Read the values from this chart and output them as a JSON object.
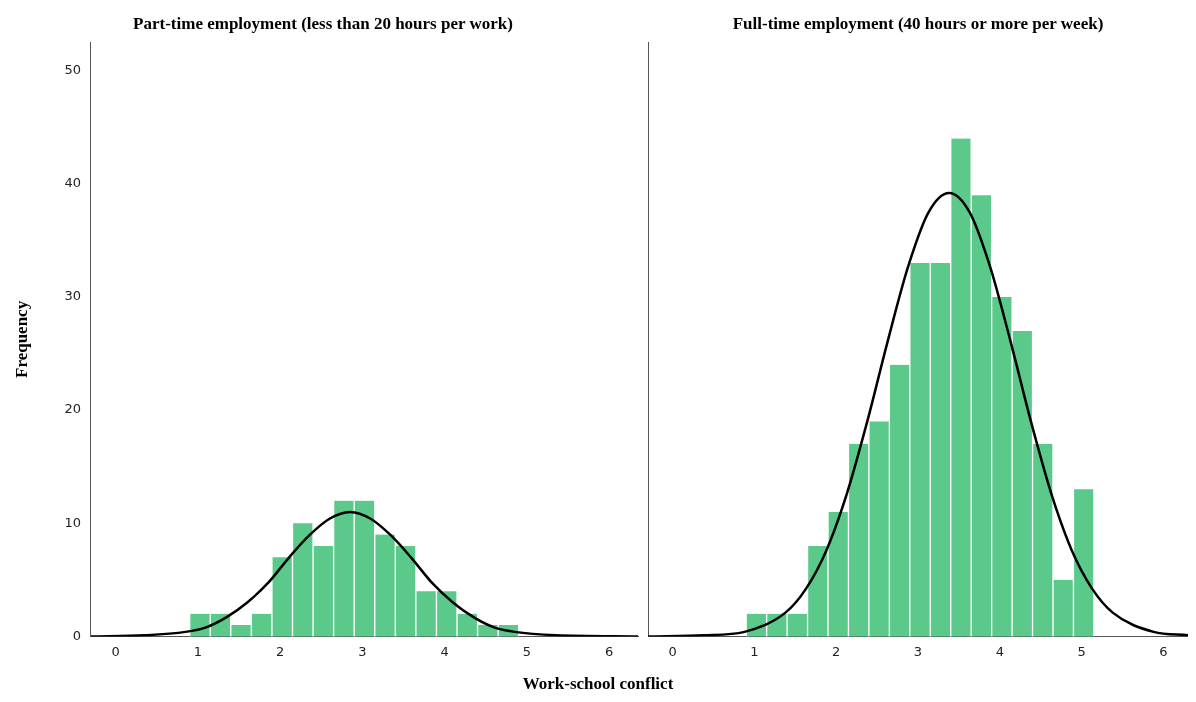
{
  "chart_data": [
    {
      "type": "histogram",
      "title": "Part-time employment (less than 20 hours per work)",
      "xlabel": "Work-school conflict",
      "ylabel": "Frequency",
      "xlim": [
        -0.3,
        6.35
      ],
      "xticks": [
        0,
        1,
        2,
        3,
        4,
        5,
        6
      ],
      "ylim": [
        0,
        52.5
      ],
      "yticks": [
        0,
        10,
        20,
        30,
        40,
        50
      ],
      "grid": false,
      "legend": false,
      "series": [
        {
          "color": "#5bc98a",
          "bins": [
            0.9,
            1.15,
            1.4,
            1.65,
            1.9,
            2.15,
            2.4,
            2.65,
            2.9,
            3.15,
            3.4,
            3.65,
            3.9,
            4.15,
            4.4,
            4.65,
            4.9
          ],
          "values": [
            2,
            2,
            1,
            2,
            7,
            10,
            8,
            12,
            12,
            9,
            8,
            4,
            4,
            2,
            1,
            1
          ]
        },
        {
          "type": "line",
          "color": "#000000",
          "marker": "none",
          "x": [
            -0.3,
            0.35,
            0.85,
            1.1,
            1.35,
            1.6,
            1.85,
            2.1,
            2.35,
            2.6,
            2.85,
            3.1,
            3.35,
            3.6,
            3.85,
            4.1,
            4.35,
            4.6,
            4.85,
            5.35,
            6.35
          ],
          "values": [
            0,
            0.1,
            0.4,
            0.8,
            1.7,
            3,
            4.7,
            6.9,
            8.9,
            10.4,
            11,
            10.4,
            8.9,
            6.9,
            4.7,
            3,
            1.7,
            0.8,
            0.4,
            0.1,
            0
          ]
        }
      ]
    },
    {
      "type": "histogram",
      "title": "Full-time employment (40 hours or more per week)",
      "xlim": [
        -0.3,
        6.3
      ],
      "xticks": [
        0,
        1,
        2,
        3,
        4,
        5,
        6
      ],
      "ylim": [
        0,
        52.5
      ],
      "tick_labels": "x",
      "grid": false,
      "legend": false,
      "series": [
        {
          "color": "#5bc98a",
          "bins": [
            0.9,
            1.15,
            1.4,
            1.65,
            1.9,
            2.15,
            2.4,
            2.65,
            2.9,
            3.15,
            3.4,
            3.65,
            3.9,
            4.15,
            4.4,
            4.65,
            4.9,
            5.15
          ],
          "values": [
            2,
            2,
            2,
            8,
            11,
            17,
            19,
            24,
            33,
            33,
            44,
            39,
            30,
            27,
            17,
            5,
            13
          ]
        },
        {
          "type": "line",
          "color": "#000000",
          "marker": "none",
          "x": [
            -0.3,
            0.38,
            0.88,
            1.38,
            1.63,
            1.88,
            2.13,
            2.38,
            2.63,
            2.88,
            3.13,
            3.38,
            3.63,
            3.88,
            4.13,
            4.38,
            4.63,
            4.88,
            5.13,
            5.38,
            5.88,
            6.3
          ],
          "values": [
            0,
            0.1,
            0.4,
            2.1,
            4.2,
            7.6,
            12.6,
            19.0,
            26.1,
            32.7,
            37.5,
            39.2,
            37.5,
            32.7,
            26.1,
            19.0,
            12.6,
            7.6,
            4.2,
            2.1,
            0.4,
            0.1
          ]
        }
      ]
    }
  ]
}
